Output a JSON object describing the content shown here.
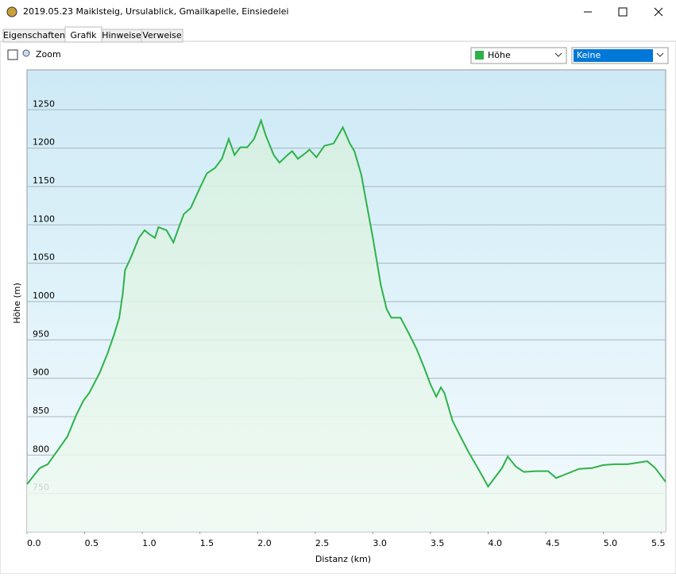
{
  "window": {
    "title": "2019.05.23 Maiklsteig, Ursulablick, Gmailkapelle, Einsiedelei"
  },
  "tabs": [
    "Eigenschaften",
    "Grafik",
    "Hinweise",
    "Verweise"
  ],
  "toolbar": {
    "zoom": "Zoom",
    "dropdown1": "Höhe",
    "dropdown2": "Keine"
  },
  "chart_data": {
    "type": "area",
    "color": "#2db24a",
    "xlabel": "Distanz  (km)",
    "ylabel": "Höhe (m)",
    "x": [
      0,
      0.11,
      0.18,
      0.28,
      0.35,
      0.43,
      0.49,
      0.54,
      0.63,
      0.7,
      0.76,
      0.8,
      0.83,
      0.85,
      0.9,
      0.97,
      1.02,
      1.06,
      1.11,
      1.14,
      1.21,
      1.27,
      1.32,
      1.36,
      1.42,
      1.49,
      1.56,
      1.63,
      1.69,
      1.75,
      1.8,
      1.85,
      1.91,
      1.97,
      2.03,
      2.07,
      2.14,
      2.19,
      2.26,
      2.3,
      2.35,
      2.42,
      2.45,
      2.51,
      2.58,
      2.66,
      2.74,
      2.8,
      2.84,
      2.9,
      2.95,
      3.0,
      3.07,
      3.12,
      3.16,
      3.24,
      3.31,
      3.38,
      3.45,
      3.5,
      3.55,
      3.59,
      3.62,
      3.69,
      3.76,
      3.83,
      3.93,
      4.0,
      4.07,
      4.12,
      4.17,
      4.24,
      4.31,
      4.41,
      4.52,
      4.59,
      4.69,
      4.79,
      4.9,
      5.0,
      5.1,
      5.21,
      5.38,
      5.45,
      5.54
    ],
    "values": [
      762,
      783,
      788,
      809,
      824,
      853,
      871,
      881,
      907,
      933,
      959,
      979,
      1010,
      1041,
      1057,
      1083,
      1093,
      1088,
      1083,
      1097,
      1093,
      1077,
      1098,
      1114,
      1122,
      1145,
      1167,
      1174,
      1186,
      1212,
      1191,
      1201,
      1201,
      1212,
      1236,
      1217,
      1191,
      1181,
      1191,
      1196,
      1186,
      1194,
      1198,
      1188,
      1203,
      1206,
      1227,
      1206,
      1196,
      1165,
      1124,
      1083,
      1021,
      990,
      979,
      979,
      959,
      938,
      912,
      892,
      876,
      888,
      881,
      845,
      824,
      804,
      778,
      759,
      773,
      783,
      798,
      785,
      778,
      779,
      779,
      770,
      776,
      782,
      783,
      787,
      788,
      788,
      792,
      783,
      765
    ],
    "xlim": [
      0,
      5.54
    ],
    "ylim": [
      700,
      1302
    ],
    "xticks": [
      {
        "value": 0,
        "label": "0.0"
      },
      0.5,
      {
        "value": 1,
        "label": "1.0"
      },
      1.5,
      {
        "value": 2,
        "label": "2.0"
      },
      2.5,
      {
        "value": 3,
        "label": "3.0"
      },
      3.5,
      {
        "value": 4,
        "label": "4.0"
      },
      4.5,
      {
        "value": 5,
        "label": "5.0"
      },
      5.5
    ],
    "yticks": [
      750,
      800,
      850,
      900,
      950,
      1000,
      1050,
      1100,
      1150,
      1200,
      1250
    ],
    "grid": true
  }
}
